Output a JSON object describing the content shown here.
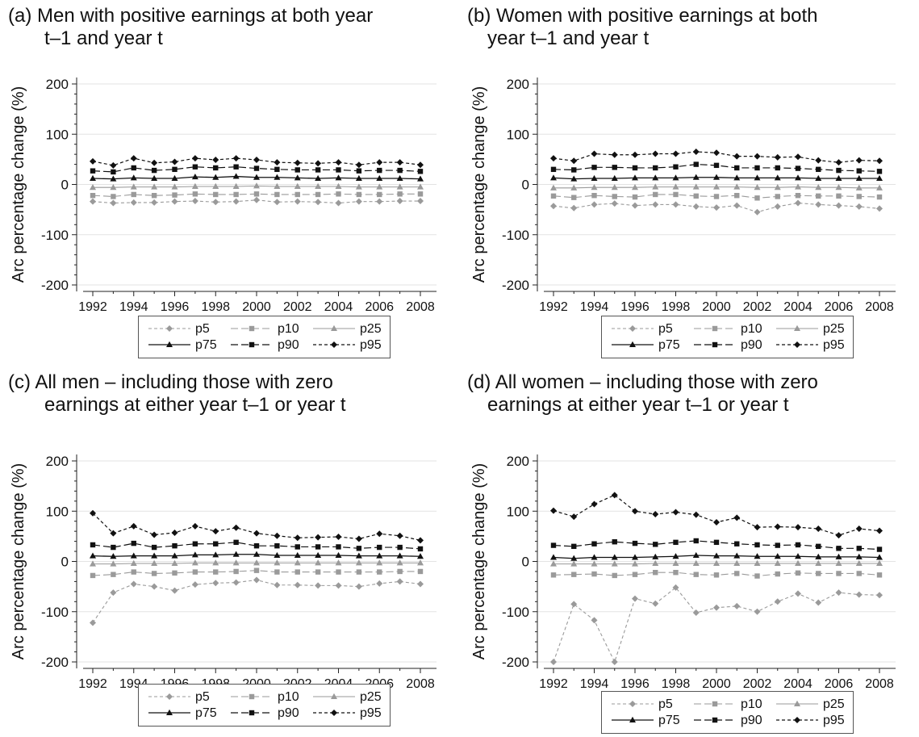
{
  "chart_data": [
    {
      "type": "line",
      "label": "(a)",
      "title_line1": "Men with positive earnings at both year",
      "title_line2": "t–1 and year t",
      "ylabel": "Arc percentage change (%)",
      "ylim": [
        -200,
        200
      ],
      "yticks": [
        200,
        100,
        0,
        -100,
        -200
      ],
      "xticks": [
        1992,
        1994,
        1996,
        1998,
        2000,
        2002,
        2004,
        2006,
        2008
      ],
      "x": [
        1992,
        1993,
        1994,
        1995,
        1996,
        1997,
        1998,
        1999,
        2000,
        2001,
        2002,
        2003,
        2004,
        2005,
        2006,
        2007,
        2008
      ],
      "series": [
        {
          "name": "p5",
          "values": [
            -34,
            -37,
            -36,
            -36,
            -34,
            -33,
            -35,
            -34,
            -31,
            -35,
            -34,
            -35,
            -37,
            -34,
            -34,
            -33,
            -33
          ]
        },
        {
          "name": "p10",
          "values": [
            -22,
            -24,
            -20,
            -22,
            -21,
            -19,
            -20,
            -20,
            -19,
            -20,
            -20,
            -20,
            -19,
            -20,
            -20,
            -19,
            -19
          ]
        },
        {
          "name": "p25",
          "values": [
            -6,
            -6,
            -5,
            -5,
            -5,
            -4,
            -4,
            -4,
            -3,
            -4,
            -4,
            -4,
            -4,
            -5,
            -5,
            -5,
            -5
          ]
        },
        {
          "name": "p75",
          "values": [
            12,
            11,
            13,
            12,
            12,
            15,
            14,
            16,
            14,
            14,
            13,
            12,
            13,
            12,
            12,
            12,
            11
          ]
        },
        {
          "name": "p90",
          "values": [
            27,
            25,
            33,
            28,
            30,
            35,
            33,
            35,
            32,
            30,
            29,
            29,
            29,
            27,
            28,
            28,
            26
          ]
        },
        {
          "name": "p95",
          "values": [
            46,
            38,
            52,
            43,
            45,
            52,
            49,
            52,
            49,
            44,
            43,
            42,
            44,
            39,
            44,
            44,
            39
          ]
        }
      ]
    },
    {
      "type": "line",
      "label": "(b)",
      "title_line1": "Women with positive earnings at both",
      "title_line2": "year t–1 and year t",
      "ylabel": "Arc percentage change (%)",
      "ylim": [
        -200,
        200
      ],
      "yticks": [
        200,
        100,
        0,
        -100,
        -200
      ],
      "xticks": [
        1992,
        1994,
        1996,
        1998,
        2000,
        2002,
        2004,
        2006,
        2008
      ],
      "x": [
        1992,
        1993,
        1994,
        1995,
        1996,
        1997,
        1998,
        1999,
        2000,
        2001,
        2002,
        2003,
        2004,
        2005,
        2006,
        2007,
        2008
      ],
      "series": [
        {
          "name": "p5",
          "values": [
            -43,
            -47,
            -40,
            -38,
            -42,
            -40,
            -40,
            -44,
            -46,
            -42,
            -55,
            -44,
            -37,
            -40,
            -42,
            -44,
            -48
          ]
        },
        {
          "name": "p10",
          "values": [
            -23,
            -26,
            -22,
            -24,
            -25,
            -20,
            -20,
            -23,
            -24,
            -22,
            -27,
            -24,
            -22,
            -23,
            -23,
            -24,
            -25
          ]
        },
        {
          "name": "p25",
          "values": [
            -7,
            -7,
            -6,
            -6,
            -6,
            -5,
            -5,
            -5,
            -5,
            -5,
            -6,
            -6,
            -5,
            -6,
            -6,
            -7,
            -7
          ]
        },
        {
          "name": "p75",
          "values": [
            13,
            11,
            12,
            12,
            13,
            13,
            13,
            14,
            14,
            13,
            13,
            13,
            13,
            12,
            12,
            12,
            12
          ]
        },
        {
          "name": "p90",
          "values": [
            30,
            29,
            34,
            34,
            33,
            33,
            35,
            40,
            38,
            33,
            33,
            33,
            32,
            30,
            28,
            27,
            26
          ]
        },
        {
          "name": "p95",
          "values": [
            52,
            47,
            61,
            59,
            59,
            61,
            61,
            65,
            63,
            56,
            56,
            54,
            55,
            48,
            44,
            48,
            47
          ]
        }
      ]
    },
    {
      "type": "line",
      "label": "(c)",
      "title_line1": "All men – including those with zero",
      "title_line2": "earnings at either year t–1 or year t",
      "ylabel": "Arc percentage change (%)",
      "ylim": [
        -200,
        200
      ],
      "yticks": [
        200,
        100,
        0,
        -100,
        -200
      ],
      "xticks": [
        1992,
        1994,
        1996,
        1998,
        2000,
        2002,
        2004,
        2006,
        2008
      ],
      "x": [
        1992,
        1993,
        1994,
        1995,
        1996,
        1997,
        1998,
        1999,
        2000,
        2001,
        2002,
        2003,
        2004,
        2005,
        2006,
        2007,
        2008
      ],
      "series": [
        {
          "name": "p5",
          "values": [
            -122,
            -62,
            -45,
            -50,
            -58,
            -46,
            -43,
            -42,
            -37,
            -47,
            -47,
            -48,
            -48,
            -50,
            -44,
            -40,
            -45
          ]
        },
        {
          "name": "p10",
          "values": [
            -28,
            -26,
            -21,
            -24,
            -23,
            -21,
            -21,
            -20,
            -18,
            -21,
            -21,
            -21,
            -21,
            -21,
            -21,
            -20,
            -20
          ]
        },
        {
          "name": "p25",
          "values": [
            -5,
            -5,
            -4,
            -4,
            -4,
            -3,
            -3,
            -3,
            -3,
            -3,
            -3,
            -3,
            -3,
            -3,
            -3,
            -3,
            -3
          ]
        },
        {
          "name": "p75",
          "values": [
            11,
            10,
            11,
            11,
            11,
            13,
            13,
            14,
            14,
            12,
            12,
            12,
            12,
            11,
            11,
            11,
            10
          ]
        },
        {
          "name": "p90",
          "values": [
            33,
            28,
            36,
            28,
            31,
            35,
            35,
            38,
            31,
            31,
            29,
            29,
            29,
            26,
            28,
            28,
            25
          ]
        },
        {
          "name": "p95",
          "values": [
            96,
            56,
            70,
            53,
            57,
            70,
            60,
            67,
            56,
            51,
            47,
            48,
            49,
            45,
            55,
            51,
            42
          ]
        }
      ]
    },
    {
      "type": "line",
      "label": "(d)",
      "title_line1": "All women – including those with zero",
      "title_line2": "earnings at either year t–1 or year t",
      "ylabel": "Arc percentage change (%)",
      "ylim": [
        -200,
        200
      ],
      "yticks": [
        200,
        100,
        0,
        -100,
        -200
      ],
      "xticks": [
        1992,
        1994,
        1996,
        1998,
        2000,
        2002,
        2004,
        2006,
        2008
      ],
      "x": [
        1992,
        1993,
        1994,
        1995,
        1996,
        1997,
        1998,
        1999,
        2000,
        2001,
        2002,
        2003,
        2004,
        2005,
        2006,
        2007,
        2008
      ],
      "series": [
        {
          "name": "p5",
          "values": [
            -200,
            -85,
            -117,
            -200,
            -74,
            -84,
            -52,
            -102,
            -92,
            -89,
            -100,
            -80,
            -64,
            -82,
            -62,
            -66,
            -67
          ]
        },
        {
          "name": "p10",
          "values": [
            -27,
            -26,
            -25,
            -28,
            -26,
            -22,
            -22,
            -26,
            -27,
            -24,
            -29,
            -25,
            -23,
            -24,
            -24,
            -24,
            -27
          ]
        },
        {
          "name": "p25",
          "values": [
            -5,
            -5,
            -5,
            -5,
            -5,
            -4,
            -4,
            -4,
            -4,
            -4,
            -4,
            -4,
            -4,
            -4,
            -4,
            -4,
            -4
          ]
        },
        {
          "name": "p75",
          "values": [
            8,
            6,
            8,
            8,
            8,
            9,
            10,
            12,
            11,
            11,
            10,
            10,
            10,
            9,
            9,
            9,
            8
          ]
        },
        {
          "name": "p90",
          "values": [
            32,
            30,
            35,
            39,
            36,
            34,
            38,
            41,
            38,
            35,
            33,
            32,
            33,
            30,
            26,
            26,
            24
          ]
        },
        {
          "name": "p95",
          "values": [
            101,
            89,
            114,
            132,
            100,
            94,
            98,
            93,
            78,
            87,
            68,
            69,
            68,
            65,
            52,
            65,
            61
          ]
        }
      ]
    }
  ]
}
